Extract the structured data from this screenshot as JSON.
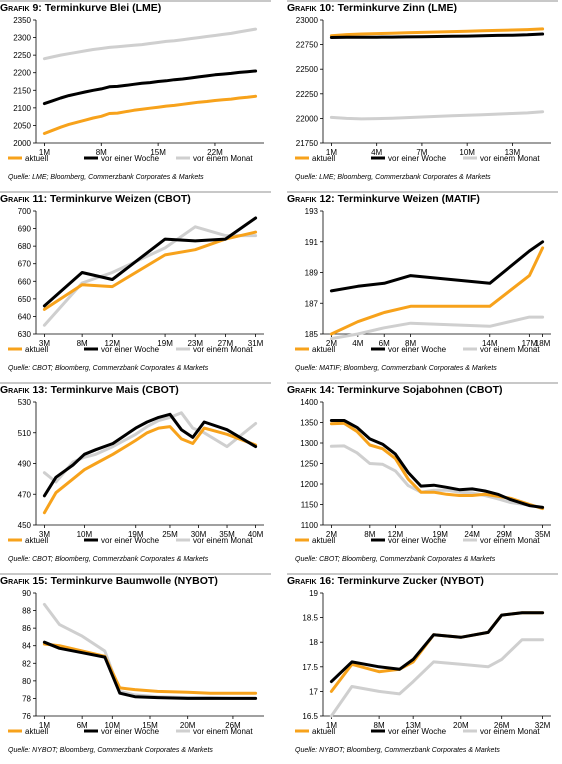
{
  "legend_labels": [
    "aktuell",
    "vor einer Woche",
    "vor einem Monat"
  ],
  "colors": {
    "aktuell": "#f7a21b",
    "vor_einer_woche": "#000000",
    "vor_einem_monat": "#cfcfcf",
    "rule": "#c8c8c8"
  },
  "charts": [
    {
      "prefix": "Grafik 9:",
      "name": "Terminkurve Blei (LME)",
      "source": "Quelle: LME; Bloomberg, Commerzbank Corporates & Markets"
    },
    {
      "prefix": "Grafik 10:",
      "name": "Terminkurve Zinn (LME)",
      "source": "Quelle: LME; Bloomberg, Commerzbank Corporates & Markets"
    },
    {
      "prefix": "Grafik 11:",
      "name": "Terminkurve Weizen (CBOT)",
      "source": "Quelle: CBOT; Bloomberg, Commerzbank Corporates & Markets"
    },
    {
      "prefix": "Grafik 12:",
      "name": "Terminkurve Weizen (MATIF)",
      "source": "Quelle: MATIF; Bloomberg, Commerzbank Corporates & Markets"
    },
    {
      "prefix": "Grafik 13:",
      "name": " Terminkurve Mais (CBOT)",
      "source": "Quelle: CBOT; Bloomberg, Commerzbank Corporates & Markets"
    },
    {
      "prefix": "Grafik 14:",
      "name": "Terminkurve Sojabohnen (CBOT)",
      "source": "Quelle: CBOT; Bloomberg, Commerzbank Corporates & Markets"
    },
    {
      "prefix": "Grafik 15:",
      "name": "Terminkurve Baumwolle (NYBOT)",
      "source": "Quelle: NYBOT; Bloomberg, Commerzbank Corporates & Markets"
    },
    {
      "prefix": "Grafik 16:",
      "name": "Terminkurve Zucker (NYBOT)",
      "source": "Quelle: NYBOT; Bloomberg, Commerzbank Corporates & Markets"
    }
  ],
  "chart_data": [
    {
      "type": "line",
      "title": "Terminkurve Blei (LME)",
      "x": [
        1,
        2,
        3,
        4,
        5,
        6,
        7,
        8,
        9,
        10,
        11,
        12,
        13,
        14,
        15,
        16,
        17,
        18,
        19,
        20,
        21,
        22,
        23,
        24,
        25,
        26,
        27
      ],
      "xticks": [
        1,
        8,
        15,
        22
      ],
      "xtick_labels": [
        "1M",
        "8M",
        "15M",
        "22M"
      ],
      "ylim": [
        2000,
        2350
      ],
      "yticks": [
        2000,
        2050,
        2100,
        2150,
        2200,
        2250,
        2300,
        2350
      ],
      "legend": "bottom",
      "series": [
        {
          "name": "aktuell",
          "values": [
            2027,
            2036,
            2045,
            2053,
            2059,
            2065,
            2071,
            2076,
            2084,
            2085,
            2089,
            2093,
            2096,
            2099,
            2102,
            2105,
            2107,
            2110,
            2113,
            2116,
            2118,
            2121,
            2123,
            2125,
            2128,
            2130,
            2133
          ]
        },
        {
          "name": "vor einer Woche",
          "values": [
            2112,
            2120,
            2128,
            2135,
            2140,
            2145,
            2150,
            2154,
            2160,
            2161,
            2164,
            2167,
            2170,
            2172,
            2175,
            2177,
            2180,
            2182,
            2185,
            2188,
            2191,
            2194,
            2196,
            2198,
            2201,
            2203,
            2205
          ]
        },
        {
          "name": "vor einem Monat",
          "values": [
            2240,
            2245,
            2250,
            2254,
            2258,
            2262,
            2266,
            2269,
            2272,
            2274,
            2276,
            2278,
            2280,
            2283,
            2286,
            2289,
            2291,
            2294,
            2297,
            2300,
            2303,
            2306,
            2309,
            2312,
            2316,
            2320,
            2324
          ]
        }
      ]
    },
    {
      "type": "line",
      "title": "Terminkurve Zinn (LME)",
      "x": [
        1,
        2,
        3,
        4,
        5,
        6,
        7,
        8,
        9,
        10,
        11,
        12,
        13,
        14,
        15
      ],
      "xticks": [
        1,
        4,
        7,
        10,
        13
      ],
      "xtick_labels": [
        "1M",
        "4M",
        "7M",
        "10M",
        "13M"
      ],
      "ylim": [
        21750,
        23000
      ],
      "yticks": [
        21750,
        22000,
        22250,
        22500,
        22750,
        23000
      ],
      "legend": "bottom",
      "series": [
        {
          "name": "aktuell",
          "values": [
            22840,
            22852,
            22858,
            22862,
            22866,
            22870,
            22874,
            22878,
            22882,
            22886,
            22890,
            22894,
            22898,
            22902,
            22910
          ]
        },
        {
          "name": "vor einer Woche",
          "values": [
            22822,
            22825,
            22825,
            22825,
            22826,
            22828,
            22830,
            22832,
            22834,
            22836,
            22840,
            22843,
            22846,
            22850,
            22858
          ]
        },
        {
          "name": "vor einem Monat",
          "values": [
            22010,
            22000,
            21995,
            21998,
            22002,
            22008,
            22014,
            22020,
            22026,
            22032,
            22038,
            22044,
            22050,
            22056,
            22068
          ]
        }
      ]
    },
    {
      "type": "line",
      "title": "Terminkurve Weizen (CBOT)",
      "x": [
        3,
        8,
        12,
        19,
        23,
        27,
        31
      ],
      "xticks": [
        3,
        8,
        12,
        19,
        23,
        27,
        31
      ],
      "xtick_labels": [
        "3M",
        "8M",
        "12M",
        "19M",
        "23M",
        "27M",
        "31M"
      ],
      "ylim": [
        630,
        700
      ],
      "yticks": [
        630,
        640,
        650,
        660,
        670,
        680,
        690,
        700
      ],
      "legend": "bottom",
      "series": [
        {
          "name": "aktuell",
          "values": [
            644,
            658,
            657,
            675,
            678,
            684,
            688
          ]
        },
        {
          "name": "vor einer Woche",
          "values": [
            646,
            665,
            661,
            684,
            683,
            684,
            696
          ]
        },
        {
          "name": "vor einem Monat",
          "values": [
            635,
            659,
            665,
            679,
            691,
            686,
            686
          ]
        }
      ]
    },
    {
      "type": "line",
      "title": "Terminkurve Weizen (MATIF)",
      "x": [
        2,
        4,
        6,
        8,
        14,
        17,
        18
      ],
      "xticks": [
        2,
        4,
        6,
        8,
        14,
        17,
        18
      ],
      "xtick_labels": [
        "2M",
        "4M",
        "6M",
        "8M",
        "14M",
        "17M",
        "18M"
      ],
      "ylim": [
        185,
        193
      ],
      "yticks": [
        185,
        187,
        189,
        191,
        193
      ],
      "legend": "bottom",
      "series": [
        {
          "name": "aktuell",
          "values": [
            185.0,
            185.8,
            186.4,
            186.8,
            186.8,
            188.8,
            190.6
          ]
        },
        {
          "name": "vor einer Woche",
          "values": [
            187.8,
            188.1,
            188.3,
            188.8,
            188.3,
            190.4,
            191.0
          ]
        },
        {
          "name": "vor einem Monat",
          "values": [
            184.7,
            185.0,
            185.4,
            185.7,
            185.5,
            186.1,
            186.1
          ]
        }
      ]
    },
    {
      "type": "line",
      "title": "Terminkurve Mais (CBOT)",
      "x": [
        3,
        5,
        8,
        10,
        12,
        15,
        19,
        21,
        23,
        25,
        27,
        29,
        31,
        35,
        40
      ],
      "xticks": [
        3,
        10,
        19,
        25,
        30,
        35,
        40
      ],
      "xtick_labels": [
        "3M",
        "10M",
        "19M",
        "25M",
        "30M",
        "35M",
        "40M"
      ],
      "ylim": [
        450,
        530
      ],
      "yticks": [
        450,
        470,
        490,
        510,
        530
      ],
      "legend": "bottom",
      "series": [
        {
          "name": "aktuell",
          "values": [
            458,
            471,
            480,
            486,
            490,
            496,
            505,
            510,
            513,
            514,
            506,
            503,
            513,
            509,
            502
          ]
        },
        {
          "name": "vor einer Woche",
          "values": [
            469,
            481,
            489,
            496,
            499,
            503,
            513,
            517,
            520,
            522,
            512,
            507,
            517,
            512,
            501
          ]
        },
        {
          "name": "vor einem Monat",
          "values": [
            484,
            478,
            491,
            494,
            496,
            501,
            509,
            514,
            518,
            520,
            523,
            513,
            510,
            501,
            516
          ]
        }
      ]
    },
    {
      "type": "line",
      "title": "Terminkurve Sojabohnen (CBOT)",
      "x": [
        2,
        4,
        6,
        8,
        10,
        12,
        14,
        16,
        18,
        20,
        22,
        24,
        26,
        28,
        30,
        33,
        35
      ],
      "xticks": [
        2,
        8,
        12,
        19,
        24,
        29,
        35
      ],
      "xtick_labels": [
        "2M",
        "8M",
        "12M",
        "19M",
        "24M",
        "29M",
        "35M"
      ],
      "ylim": [
        1100,
        1400
      ],
      "yticks": [
        1100,
        1150,
        1200,
        1250,
        1300,
        1350,
        1400
      ],
      "legend": "bottom",
      "series": [
        {
          "name": "aktuell",
          "values": [
            1347,
            1348,
            1328,
            1295,
            1286,
            1262,
            1212,
            1180,
            1180,
            1175,
            1172,
            1172,
            1175,
            1170,
            1165,
            1150,
            1140
          ]
        },
        {
          "name": "vor einer Woche",
          "values": [
            1355,
            1355,
            1338,
            1310,
            1297,
            1273,
            1228,
            1195,
            1197,
            1192,
            1186,
            1188,
            1183,
            1175,
            1162,
            1147,
            1143
          ]
        },
        {
          "name": "vor einem Monat",
          "values": [
            1292,
            1293,
            1276,
            1250,
            1248,
            1232,
            1196,
            1180,
            1185,
            1185,
            1180,
            1178,
            1172,
            1164,
            1155,
            1148,
            1143
          ]
        }
      ]
    },
    {
      "type": "line",
      "title": "Terminkurve Baumwolle (NYBOT)",
      "x": [
        1,
        3,
        6,
        9,
        11,
        13,
        16,
        20,
        23,
        26,
        29
      ],
      "xticks": [
        1,
        6,
        10,
        15,
        20,
        26
      ],
      "xtick_labels": [
        "1M",
        "6M",
        "10M",
        "15M",
        "20M",
        "26M"
      ],
      "ylim": [
        76,
        90
      ],
      "yticks": [
        76,
        78,
        80,
        82,
        84,
        86,
        88,
        90
      ],
      "legend": "bottom",
      "series": [
        {
          "name": "aktuell",
          "values": [
            84.2,
            84.0,
            83.4,
            82.8,
            79.2,
            79.0,
            78.8,
            78.7,
            78.6,
            78.6,
            78.6
          ]
        },
        {
          "name": "vor einer Woche",
          "values": [
            84.4,
            83.7,
            83.2,
            82.7,
            78.6,
            78.2,
            78.1,
            78.0,
            78.0,
            78.0,
            78.0
          ]
        },
        {
          "name": "vor einem Monat",
          "values": [
            88.7,
            86.4,
            85.1,
            83.4,
            78.8,
            78.4,
            78.2,
            78.1,
            78.1,
            78.0,
            78.0
          ]
        }
      ]
    },
    {
      "type": "line",
      "title": "Terminkurve Zucker (NYBOT)",
      "x": [
        1,
        4,
        8,
        11,
        13,
        16,
        20,
        24,
        26,
        29,
        32
      ],
      "xticks": [
        1,
        8,
        13,
        20,
        26,
        32
      ],
      "xtick_labels": [
        "1M",
        "8M",
        "13M",
        "20M",
        "26M",
        "32M"
      ],
      "ylim": [
        16.5,
        19.0
      ],
      "yticks": [
        16.5,
        17.0,
        17.5,
        18.0,
        18.5,
        19.0
      ],
      "legend": "bottom",
      "series": [
        {
          "name": "aktuell",
          "values": [
            17.0,
            17.55,
            17.4,
            17.45,
            17.6,
            18.15,
            18.1,
            18.2,
            18.55,
            18.6,
            18.6
          ]
        },
        {
          "name": "vor einer Woche",
          "values": [
            17.2,
            17.6,
            17.5,
            17.45,
            17.65,
            18.15,
            18.1,
            18.2,
            18.55,
            18.6,
            18.6
          ]
        },
        {
          "name": "vor einem Monat",
          "values": [
            16.5,
            17.1,
            17.0,
            16.95,
            17.2,
            17.6,
            17.55,
            17.5,
            17.65,
            18.05,
            18.05
          ]
        }
      ]
    }
  ]
}
